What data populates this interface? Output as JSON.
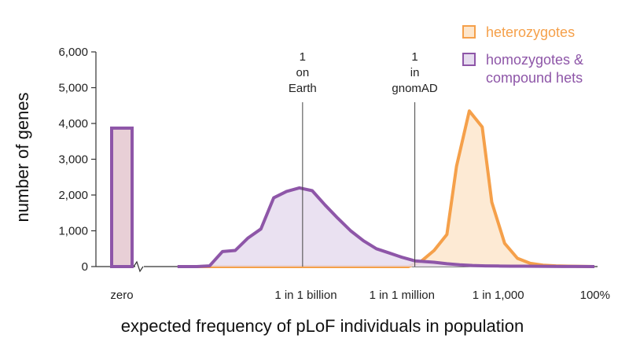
{
  "chart_data": {
    "type": "area",
    "ylabel": "number of genes",
    "xlabel": "expected frequency of pLoF individuals in population",
    "ylim": [
      0,
      6000
    ],
    "y_ticks": [
      0,
      1000,
      2000,
      3000,
      4000,
      5000,
      6000
    ],
    "y_tick_labels": [
      "0",
      "1,000",
      "2,000",
      "3,000",
      "4,000",
      "5,000",
      "6,000"
    ],
    "x_scale": "log10",
    "xlim": [
      -14,
      0
    ],
    "x_ticks": [
      {
        "value": "zero",
        "label": "zero"
      },
      {
        "value": -9,
        "label": "1 in 1 billion"
      },
      {
        "value": -6,
        "label": "1 in 1 million"
      },
      {
        "value": -3,
        "label": "1 in 1,000"
      },
      {
        "value": 0,
        "label": "100%"
      }
    ],
    "zero_bar": {
      "value": 3870
    },
    "series": [
      {
        "name": "heterozygotes",
        "color": "#f5a04a",
        "fill": "#fde6cc",
        "x": [
          -12.4,
          -5.8,
          -5.4,
          -5.0,
          -4.6,
          -4.3,
          -3.9,
          -3.5,
          -3.2,
          -2.8,
          -2.4,
          -2.0,
          -1.6,
          -1.2,
          -0.8,
          -0.4,
          0
        ],
        "y": [
          0,
          0,
          150,
          450,
          900,
          2800,
          4350,
          3900,
          1800,
          650,
          230,
          90,
          40,
          20,
          10,
          5,
          0
        ]
      },
      {
        "name": "homozygotes & compound hets",
        "color": "#8e56a8",
        "fill": "#e6dcef",
        "x": [
          -13.0,
          -12.4,
          -12.0,
          -11.6,
          -11.2,
          -10.8,
          -10.4,
          -10.0,
          -9.6,
          -9.2,
          -8.8,
          -8.4,
          -8.0,
          -7.6,
          -7.2,
          -6.8,
          -6.4,
          -6.0,
          -5.6,
          -5.0,
          -4.6,
          -4.2,
          -3.8,
          -3.4,
          -3.0,
          -2.6,
          -2.2,
          -1.8,
          -1.4,
          -1.0,
          -0.6,
          0
        ],
        "y": [
          0,
          0,
          20,
          420,
          450,
          800,
          1050,
          1920,
          2100,
          2200,
          2120,
          1720,
          1350,
          1000,
          720,
          500,
          380,
          260,
          160,
          120,
          80,
          50,
          30,
          20,
          15,
          12,
          10,
          8,
          5,
          3,
          2,
          0
        ]
      }
    ],
    "annotations": [
      {
        "text": "1 on Earth",
        "lines": [
          "1",
          "on",
          "Earth"
        ],
        "x": -9.1
      },
      {
        "text": "1 in gnomAD",
        "lines": [
          "1",
          "in",
          "gnomAD"
        ],
        "x": -5.6
      }
    ],
    "legend": {
      "position": "top-right"
    }
  }
}
